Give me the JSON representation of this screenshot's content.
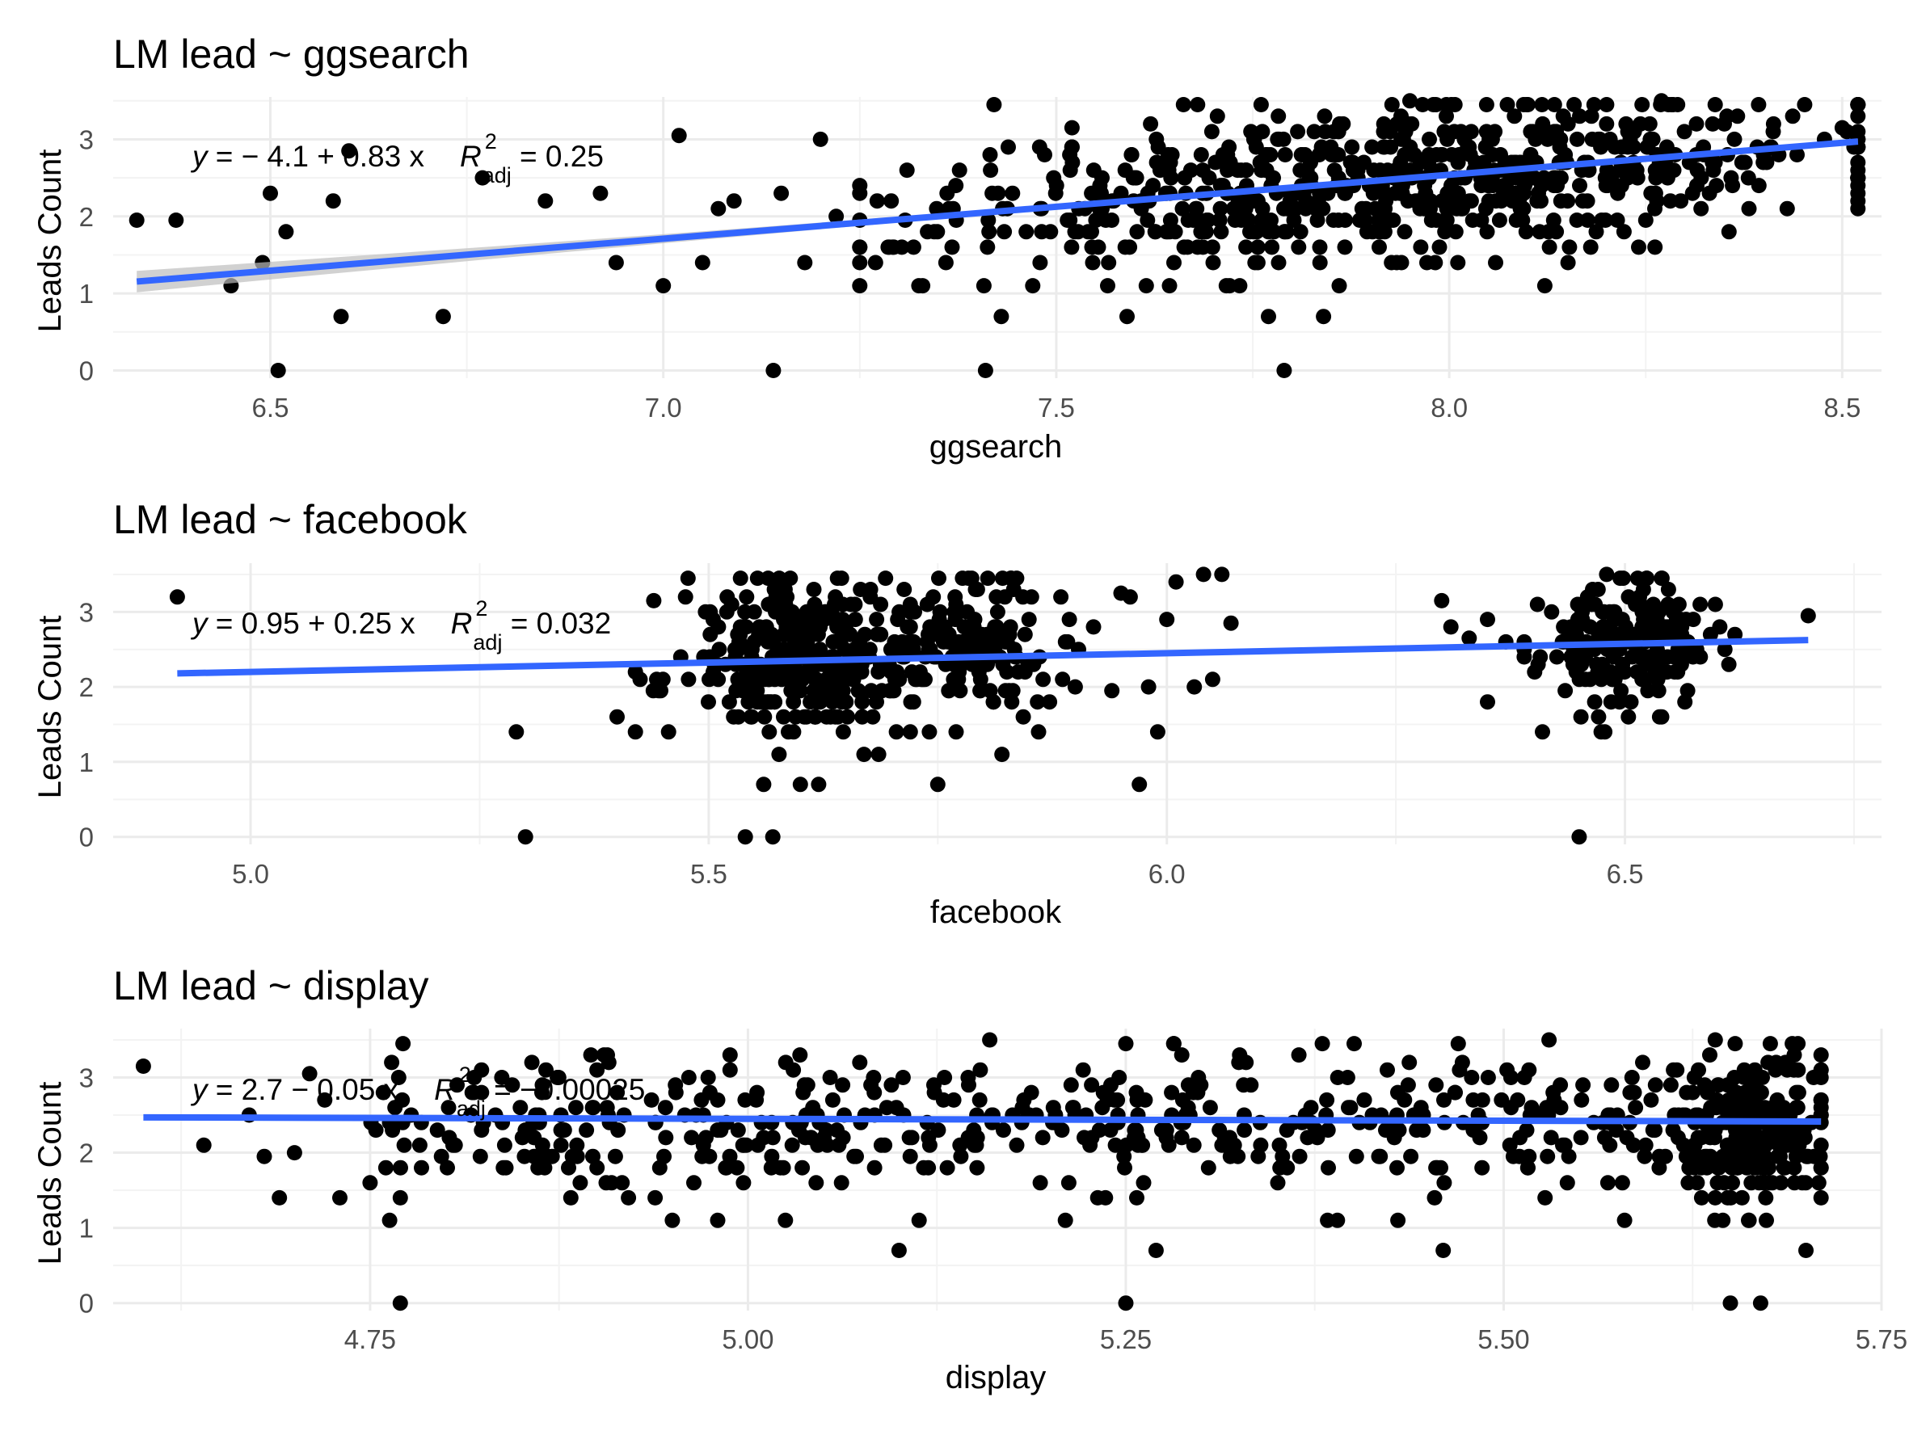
{
  "colors": {
    "point": "#000000",
    "fit": "#3366FF",
    "ci": "#BDBDBD",
    "grid_major": "#EBEBEB",
    "grid_minor": "#F3F3F3"
  },
  "chart_data": [
    {
      "type": "scatter",
      "title": "LM lead ~ ggsearch",
      "xlabel": "ggsearch",
      "ylabel": "Leads Count",
      "xlim": [
        6.3,
        8.55
      ],
      "ylim": [
        -0.1,
        3.55
      ],
      "xticks": [
        "6.5",
        "7.0",
        "7.5",
        "8.0",
        "8.5"
      ],
      "yticks": [
        "0",
        "1",
        "2",
        "3"
      ],
      "grid": true,
      "equation": {
        "lhs": "y",
        "rhs": " = − 4.1 + 0.83 x",
        "r": "R",
        "sup": "2",
        "sub": "adj",
        "val": " = 0.25"
      },
      "fit": {
        "intercept": -4.1,
        "slope": 0.83,
        "x_range": [
          6.33,
          8.52
        ]
      },
      "cloud": {
        "cx": 7.92,
        "sx": 0.28,
        "xmin": 7.25,
        "xmax": 8.52,
        "n": 700,
        "ysd": 0.5,
        "seed": 11
      },
      "points": [
        [
          6.33,
          1.95
        ],
        [
          6.38,
          1.95
        ],
        [
          6.45,
          1.1
        ],
        [
          6.49,
          1.4
        ],
        [
          6.5,
          2.3
        ],
        [
          6.51,
          0.0
        ],
        [
          6.52,
          1.8
        ],
        [
          6.58,
          2.2
        ],
        [
          6.59,
          0.7
        ],
        [
          6.6,
          2.85
        ],
        [
          6.72,
          0.7
        ],
        [
          6.77,
          2.5
        ],
        [
          6.85,
          2.2
        ],
        [
          6.92,
          2.3
        ],
        [
          6.94,
          1.4
        ],
        [
          7.0,
          1.1
        ],
        [
          7.02,
          3.05
        ],
        [
          7.05,
          1.4
        ],
        [
          7.07,
          2.1
        ],
        [
          7.09,
          2.2
        ],
        [
          7.14,
          0.0
        ],
        [
          7.15,
          2.3
        ],
        [
          7.18,
          1.4
        ],
        [
          7.2,
          3.0
        ],
        [
          7.22,
          2.0
        ],
        [
          7.27,
          1.4
        ],
        [
          7.29,
          2.2
        ],
        [
          7.31,
          2.6
        ],
        [
          7.33,
          1.1
        ],
        [
          7.41,
          0.0
        ],
        [
          7.43,
          0.7
        ],
        [
          7.47,
          1.1
        ],
        [
          7.52,
          3.15
        ],
        [
          7.59,
          0.7
        ],
        [
          7.62,
          3.2
        ],
        [
          7.77,
          0.7
        ],
        [
          7.79,
          0.0
        ],
        [
          7.84,
          0.7
        ],
        [
          7.86,
          1.1
        ],
        [
          8.43,
          2.1
        ],
        [
          8.35,
          3.2
        ],
        [
          8.27,
          3.5
        ],
        [
          8.18,
          1.6
        ],
        [
          8.25,
          1.95
        ],
        [
          8.52,
          2.5
        ],
        [
          8.5,
          3.15
        ],
        [
          7.95,
          3.5
        ],
        [
          8.1,
          3.45
        ]
      ]
    },
    {
      "type": "scatter",
      "title": "LM lead ~ facebook",
      "xlabel": "facebook",
      "ylabel": "Leads Count",
      "xlim": [
        4.85,
        6.78
      ],
      "ylim": [
        -0.1,
        3.65
      ],
      "xticks": [
        "5.0",
        "5.5",
        "6.0",
        "6.5"
      ],
      "yticks": [
        "0",
        "1",
        "2",
        "3"
      ],
      "grid": true,
      "equation": {
        "lhs": "y",
        "rhs": " = 0.95 + 0.25 x",
        "r": "R",
        "sup": "2",
        "sub": "adj",
        "val": " = 0.032"
      },
      "fit": {
        "intercept": 0.95,
        "slope": 0.25,
        "x_range": [
          4.92,
          6.7
        ]
      },
      "clouds": [
        {
          "cx": 5.6,
          "sx": 0.06,
          "xmin": 5.42,
          "xmax": 5.72,
          "cy": 2.35,
          "ysd": 0.5,
          "n": 330,
          "seed": 21
        },
        {
          "cx": 5.78,
          "sx": 0.05,
          "xmin": 5.66,
          "xmax": 5.92,
          "cy": 2.55,
          "ysd": 0.45,
          "n": 170,
          "seed": 22
        },
        {
          "cx": 6.5,
          "sx": 0.045,
          "xmin": 6.39,
          "xmax": 6.62,
          "cy": 2.55,
          "ysd": 0.4,
          "n": 200,
          "seed": 23
        }
      ],
      "points": [
        [
          4.92,
          3.2
        ],
        [
          5.29,
          1.4
        ],
        [
          5.3,
          0.0
        ],
        [
          5.4,
          1.6
        ],
        [
          5.42,
          1.4
        ],
        [
          5.44,
          3.15
        ],
        [
          5.54,
          0.0
        ],
        [
          5.57,
          0.0
        ],
        [
          5.56,
          0.7
        ],
        [
          5.6,
          0.7
        ],
        [
          5.62,
          0.7
        ],
        [
          5.75,
          0.7
        ],
        [
          5.77,
          1.4
        ],
        [
          5.82,
          1.1
        ],
        [
          5.95,
          3.25
        ],
        [
          5.97,
          0.7
        ],
        [
          5.99,
          1.4
        ],
        [
          6.01,
          3.4
        ],
        [
          6.04,
          3.5
        ],
        [
          6.06,
          3.5
        ],
        [
          6.07,
          2.85
        ],
        [
          6.03,
          2.0
        ],
        [
          6.05,
          2.1
        ],
        [
          5.98,
          2.0
        ],
        [
          5.9,
          2.0
        ],
        [
          5.92,
          2.8
        ],
        [
          5.96,
          3.2
        ],
        [
          6.0,
          2.9
        ],
        [
          6.3,
          3.15
        ],
        [
          6.31,
          2.8
        ],
        [
          6.33,
          2.65
        ],
        [
          6.35,
          2.9
        ],
        [
          6.37,
          2.6
        ],
        [
          6.35,
          1.8
        ],
        [
          6.41,
          1.4
        ],
        [
          6.45,
          0.0
        ],
        [
          6.48,
          3.5
        ],
        [
          6.7,
          2.95
        ],
        [
          6.62,
          2.7
        ],
        [
          5.94,
          1.95
        ]
      ]
    },
    {
      "type": "scatter",
      "title": "LM lead ~ display",
      "xlabel": "display",
      "ylabel": "Leads Count",
      "xlim": [
        4.58,
        5.75
      ],
      "ylim": [
        -0.1,
        3.65
      ],
      "xticks": [
        "4.75",
        "5.00",
        "5.25",
        "5.50",
        "5.75"
      ],
      "yticks": [
        "0",
        "1",
        "2",
        "3"
      ],
      "grid": true,
      "equation": {
        "lhs": "y",
        "rhs": " = 2.7 − 0.05 x",
        "r": "R",
        "sup": "2",
        "sub": "adj",
        "val": " = −0.00025"
      },
      "fit": {
        "intercept": 2.7,
        "slope": -0.05,
        "x_range": [
          4.6,
          5.71
        ]
      },
      "clouds": [
        {
          "xmin": 4.75,
          "xmax": 5.71,
          "uniform": true,
          "cy": 2.4,
          "ysd": 0.45,
          "n": 520,
          "seed": 31
        },
        {
          "cx": 5.66,
          "sx": 0.03,
          "xmin": 5.6,
          "xmax": 5.71,
          "cy": 2.3,
          "ysd": 0.55,
          "n": 200,
          "seed": 32
        }
      ],
      "points": [
        [
          4.6,
          3.15
        ],
        [
          4.64,
          2.1
        ],
        [
          4.67,
          2.5
        ],
        [
          4.68,
          1.95
        ],
        [
          4.69,
          1.4
        ],
        [
          4.71,
          3.05
        ],
        [
          4.73,
          1.4
        ],
        [
          4.75,
          1.6
        ],
        [
          4.77,
          0.0
        ],
        [
          4.77,
          1.4
        ],
        [
          4.7,
          2.0
        ],
        [
          4.72,
          2.7
        ],
        [
          5.1,
          0.7
        ],
        [
          5.27,
          0.7
        ],
        [
          5.25,
          0.0
        ],
        [
          5.46,
          0.7
        ],
        [
          5.65,
          0.0
        ],
        [
          5.67,
          0.0
        ],
        [
          5.7,
          0.7
        ],
        [
          5.16,
          3.5
        ],
        [
          5.25,
          3.45
        ],
        [
          5.38,
          3.45
        ],
        [
          5.53,
          3.5
        ],
        [
          5.64,
          3.5
        ],
        [
          5.43,
          1.1
        ],
        [
          5.39,
          1.1
        ],
        [
          4.95,
          1.1
        ],
        [
          4.98,
          1.1
        ],
        [
          5.21,
          1.1
        ],
        [
          5.58,
          1.1
        ]
      ]
    }
  ]
}
